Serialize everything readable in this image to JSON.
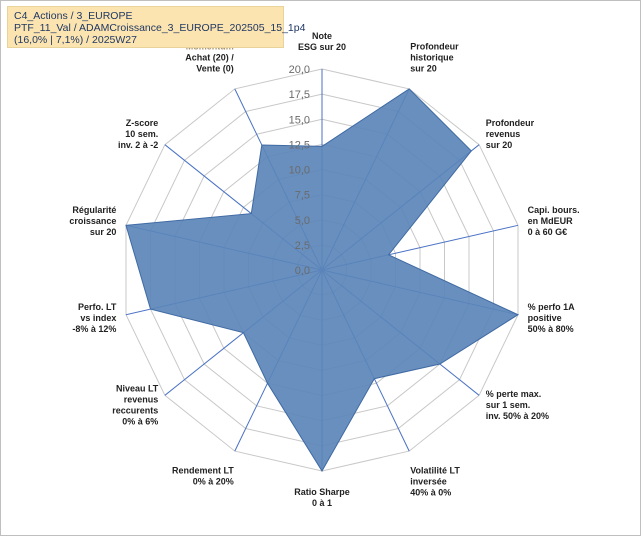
{
  "title": {
    "line1": "C4_Actions / 3_EUROPE",
    "line2": "PTF_11_Val / ADAMCroissance_3_EUROPE_202505_15_1p4",
    "line3": "(16,0% | 7,1%) / 2025W27"
  },
  "colors": {
    "fill": "#5b85b8",
    "stroke": "#3f6aa3",
    "grid": "#c8c8c8",
    "spoke": "#4a72c4",
    "title_bg": "#fce4b0"
  },
  "chart_data": {
    "type": "radar",
    "ylim": [
      0,
      20
    ],
    "tick_step": 2.5,
    "tick_labels": [
      "0,0",
      "2,5",
      "5,0",
      "7,5",
      "10,0",
      "12,5",
      "15,0",
      "17,5",
      "20,0"
    ],
    "grid": true,
    "axes": [
      {
        "label": [
          "Note",
          "ESG sur 20"
        ],
        "value": 12.3,
        "highlight": false
      },
      {
        "label": [
          "Profondeur",
          "historique",
          "sur 20"
        ],
        "value": 20.0,
        "highlight": false
      },
      {
        "label": [
          "Profondeur",
          "revenus",
          "sur 20"
        ],
        "value": 19.0,
        "highlight": false
      },
      {
        "label": [
          "Capi. bours.",
          "en MdEUR",
          "0 à 60 G€"
        ],
        "value": 6.8,
        "highlight": false
      },
      {
        "label": [
          "% perfo 1A",
          "positive",
          "50% à 80%"
        ],
        "value": 20.0,
        "highlight": false
      },
      {
        "label": [
          "% perte max.",
          "sur 1 sem.",
          "inv. 50% à 20%"
        ],
        "value": 15.0,
        "highlight": false
      },
      {
        "label": [
          "Volatilité LT",
          "inversée",
          "40% à 0%"
        ],
        "value": 12.0,
        "highlight": false
      },
      {
        "label": [
          "Ratio Sharpe",
          "0 à 1"
        ],
        "value": 20.0,
        "highlight": false
      },
      {
        "label": [
          "Rendement LT",
          "0% à 20%"
        ],
        "value": 12.5,
        "highlight": false
      },
      {
        "label": [
          "Niveau LT",
          "revenus",
          "reccurents",
          "0% à 6%"
        ],
        "value": 10.0,
        "highlight": false
      },
      {
        "label": [
          "Perfo. LT",
          "vs index",
          "-8% à 12%"
        ],
        "value": 17.5,
        "highlight": false
      },
      {
        "label": [
          "Régularité",
          "croissance",
          "sur 20"
        ],
        "value": 20.0,
        "highlight": false
      },
      {
        "label": [
          "Z-score",
          "10 sem.",
          "inv. 2 à -2"
        ],
        "value": 9.0,
        "highlight": false
      },
      {
        "label": [
          "Momentum",
          "Achat (20) /",
          "Vente (0)"
        ],
        "value": 13.8,
        "highlight": true
      }
    ]
  }
}
